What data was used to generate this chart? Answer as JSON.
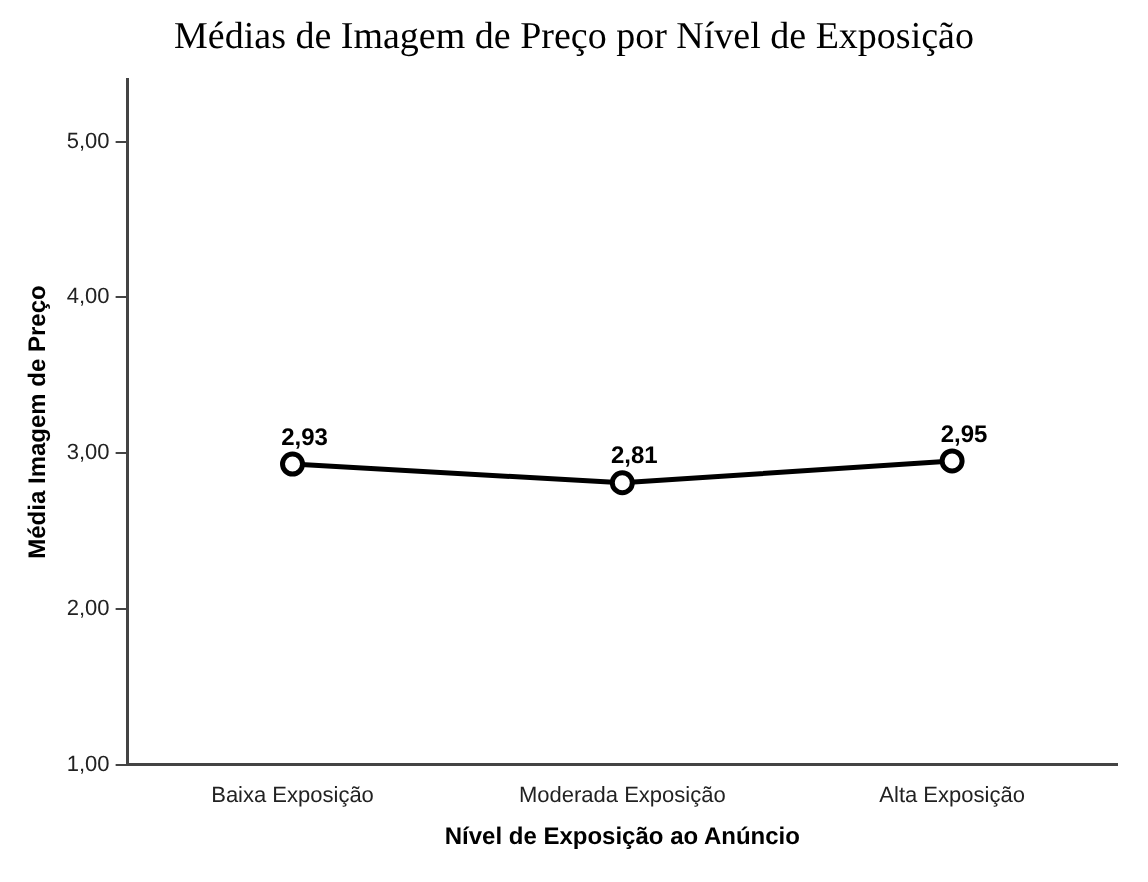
{
  "chart_data": {
    "type": "line",
    "title": "Médias de Imagem de Preço por Nível de Exposição",
    "xlabel": "Nível de Exposição ao Anúncio",
    "ylabel": "Média Imagem de Preço",
    "categories": [
      "Baixa Exposição",
      "Moderada Exposição",
      "Alta Exposição"
    ],
    "series": [
      {
        "color": "#000000",
        "values": [
          2.93,
          2.81,
          2.95
        ],
        "value_labels": [
          "2,93",
          "2,81",
          "2,95"
        ]
      }
    ],
    "ylim": [
      1,
      5.4
    ],
    "yticks": [
      {
        "value": 1,
        "label": "1,00"
      },
      {
        "value": 2,
        "label": "2,00"
      },
      {
        "value": 3,
        "label": "3,00"
      },
      {
        "value": 4,
        "label": "4,00"
      },
      {
        "value": 5,
        "label": "5,00"
      }
    ],
    "grid": false,
    "legend": false,
    "marker": "circle",
    "line_style": "solid"
  }
}
